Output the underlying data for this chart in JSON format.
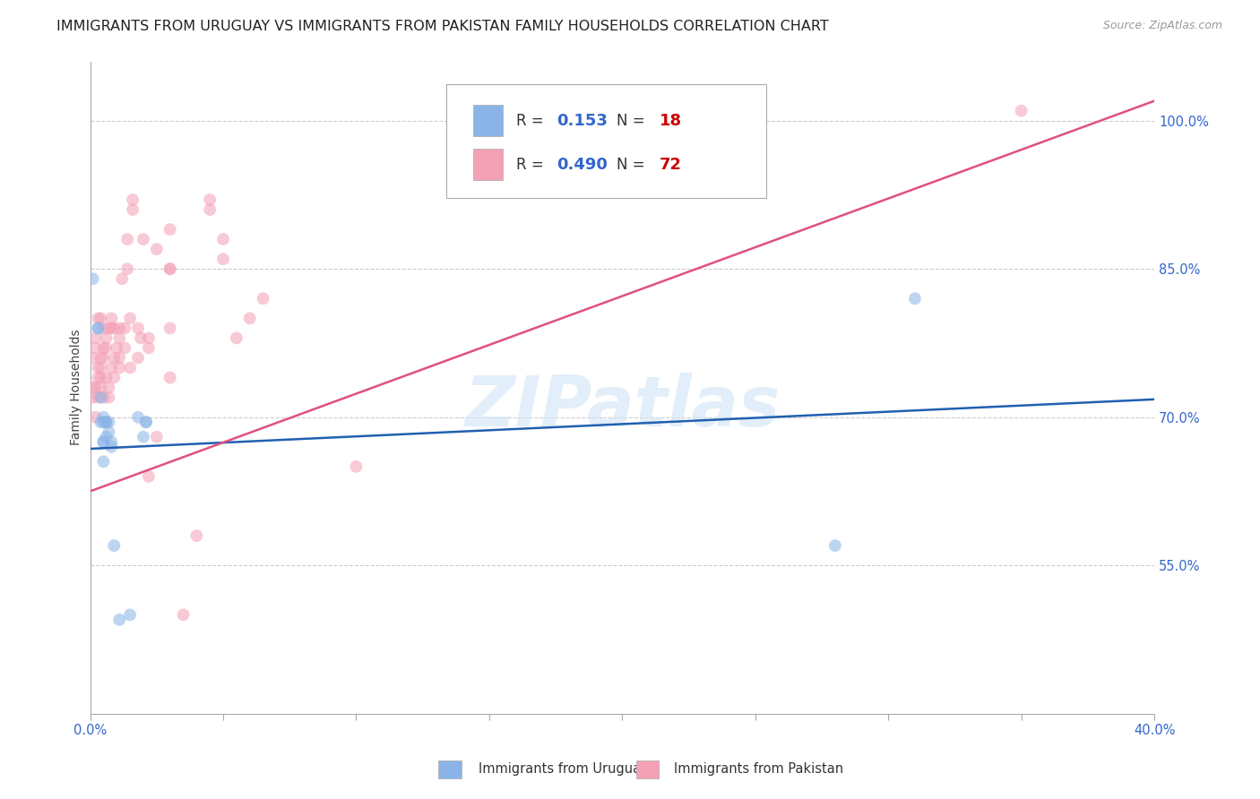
{
  "title": "IMMIGRANTS FROM URUGUAY VS IMMIGRANTS FROM PAKISTAN FAMILY HOUSEHOLDS CORRELATION CHART",
  "source": "Source: ZipAtlas.com",
  "ylabel": "Family Households",
  "xlim": [
    0.0,
    0.4
  ],
  "ylim": [
    0.4,
    1.06
  ],
  "xticks": [
    0.0,
    0.05,
    0.1,
    0.15,
    0.2,
    0.25,
    0.3,
    0.35,
    0.4
  ],
  "yticks": [
    0.55,
    0.7,
    0.85,
    1.0
  ],
  "ytick_labels": [
    "55.0%",
    "70.0%",
    "85.0%",
    "100.0%"
  ],
  "xtick_labels": [
    "0.0%",
    "",
    "",
    "",
    "",
    "",
    "",
    "",
    "40.0%"
  ],
  "watermark": "ZIPatlas",
  "uruguay_scatter": [
    [
      0.001,
      0.84
    ],
    [
      0.003,
      0.79
    ],
    [
      0.003,
      0.79
    ],
    [
      0.004,
      0.72
    ],
    [
      0.004,
      0.695
    ],
    [
      0.005,
      0.695
    ],
    [
      0.005,
      0.7
    ],
    [
      0.005,
      0.675
    ],
    [
      0.005,
      0.675
    ],
    [
      0.005,
      0.655
    ],
    [
      0.006,
      0.695
    ],
    [
      0.006,
      0.68
    ],
    [
      0.006,
      0.695
    ],
    [
      0.007,
      0.695
    ],
    [
      0.007,
      0.685
    ],
    [
      0.008,
      0.675
    ],
    [
      0.008,
      0.67
    ],
    [
      0.009,
      0.57
    ],
    [
      0.011,
      0.495
    ],
    [
      0.015,
      0.5
    ],
    [
      0.018,
      0.7
    ],
    [
      0.02,
      0.68
    ],
    [
      0.021,
      0.695
    ],
    [
      0.021,
      0.695
    ],
    [
      0.28,
      0.57
    ],
    [
      0.31,
      0.82
    ]
  ],
  "pakistan_scatter": [
    [
      0.001,
      0.76
    ],
    [
      0.001,
      0.73
    ],
    [
      0.001,
      0.72
    ],
    [
      0.002,
      0.73
    ],
    [
      0.002,
      0.7
    ],
    [
      0.002,
      0.77
    ],
    [
      0.002,
      0.78
    ],
    [
      0.003,
      0.74
    ],
    [
      0.003,
      0.72
    ],
    [
      0.003,
      0.75
    ],
    [
      0.003,
      0.8
    ],
    [
      0.004,
      0.75
    ],
    [
      0.004,
      0.74
    ],
    [
      0.004,
      0.73
    ],
    [
      0.004,
      0.8
    ],
    [
      0.004,
      0.76
    ],
    [
      0.005,
      0.79
    ],
    [
      0.005,
      0.77
    ],
    [
      0.005,
      0.76
    ],
    [
      0.005,
      0.72
    ],
    [
      0.006,
      0.74
    ],
    [
      0.006,
      0.77
    ],
    [
      0.006,
      0.78
    ],
    [
      0.007,
      0.72
    ],
    [
      0.007,
      0.73
    ],
    [
      0.007,
      0.79
    ],
    [
      0.008,
      0.79
    ],
    [
      0.008,
      0.75
    ],
    [
      0.008,
      0.8
    ],
    [
      0.009,
      0.76
    ],
    [
      0.009,
      0.74
    ],
    [
      0.009,
      0.79
    ],
    [
      0.01,
      0.77
    ],
    [
      0.011,
      0.76
    ],
    [
      0.011,
      0.75
    ],
    [
      0.011,
      0.78
    ],
    [
      0.011,
      0.79
    ],
    [
      0.012,
      0.84
    ],
    [
      0.013,
      0.77
    ],
    [
      0.013,
      0.79
    ],
    [
      0.014,
      0.85
    ],
    [
      0.014,
      0.88
    ],
    [
      0.015,
      0.75
    ],
    [
      0.015,
      0.8
    ],
    [
      0.016,
      0.91
    ],
    [
      0.016,
      0.92
    ],
    [
      0.018,
      0.79
    ],
    [
      0.018,
      0.76
    ],
    [
      0.019,
      0.78
    ],
    [
      0.02,
      0.88
    ],
    [
      0.022,
      0.77
    ],
    [
      0.022,
      0.78
    ],
    [
      0.022,
      0.64
    ],
    [
      0.025,
      0.68
    ],
    [
      0.025,
      0.87
    ],
    [
      0.03,
      0.74
    ],
    [
      0.03,
      0.85
    ],
    [
      0.03,
      0.79
    ],
    [
      0.03,
      0.85
    ],
    [
      0.03,
      0.89
    ],
    [
      0.035,
      0.5
    ],
    [
      0.04,
      0.58
    ],
    [
      0.045,
      0.92
    ],
    [
      0.045,
      0.91
    ],
    [
      0.05,
      0.88
    ],
    [
      0.05,
      0.86
    ],
    [
      0.055,
      0.78
    ],
    [
      0.06,
      0.8
    ],
    [
      0.065,
      0.82
    ],
    [
      0.1,
      0.65
    ],
    [
      0.35,
      1.01
    ]
  ],
  "uruguay_line": {
    "x0": 0.0,
    "y0": 0.668,
    "x1": 0.4,
    "y1": 0.718
  },
  "pakistan_line": {
    "x0": 0.0,
    "y0": 0.625,
    "x1": 0.4,
    "y1": 1.02
  },
  "scatter_alpha": 0.55,
  "scatter_size": 100,
  "uruguay_color": "#8ab4e8",
  "pakistan_color": "#f4a0b5",
  "uruguay_line_color": "#2060b0",
  "pakistan_line_color": "#e05080",
  "bg_color": "#ffffff",
  "grid_color": "#cccccc",
  "axis_label_color": "#3366cc",
  "title_fontsize": 11.5,
  "axis_fontsize": 10,
  "tick_fontsize": 10.5,
  "legend_r1_color": "#3366cc",
  "legend_n1_color": "#ff0000",
  "legend_r2_color": "#3366cc",
  "legend_n2_color": "#ff0000"
}
